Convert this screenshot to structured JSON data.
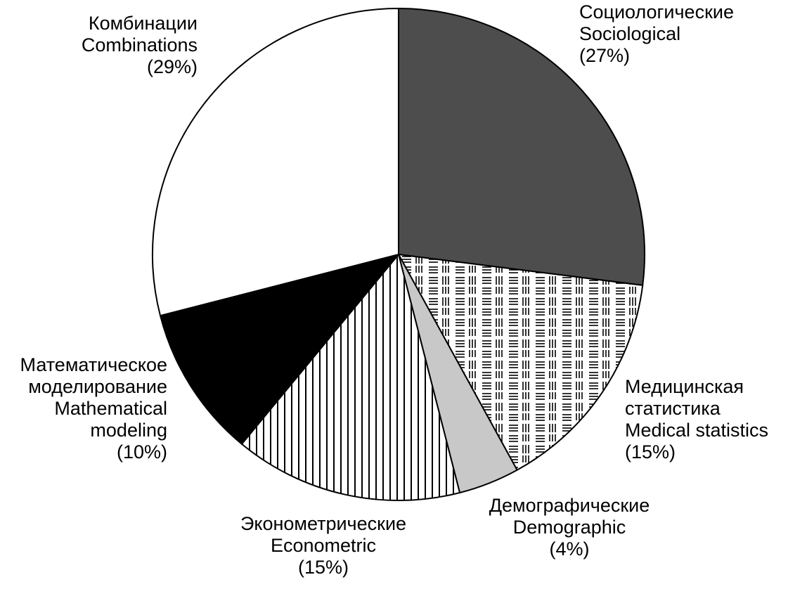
{
  "chart_data": {
    "type": "pie",
    "title": "",
    "slices": [
      {
        "label_ru": "Социологические",
        "label_en": "Sociological",
        "percent_text": "(27%)",
        "value": 27,
        "fill": "#4d4d4d",
        "pattern": "solid"
      },
      {
        "label_ru": "Медицинская статистика",
        "label_ru_line1": "Медицинская",
        "label_ru_line2": "статистика",
        "label_en": "Medical statistics",
        "percent_text": "(15%)",
        "value": 15,
        "fill": "#ffffff",
        "pattern": "lines-grid"
      },
      {
        "label_ru": "Демографические",
        "label_en": "Demographic",
        "percent_text": "(4%)",
        "value": 4,
        "fill": "#c8c8c8",
        "pattern": "solid"
      },
      {
        "label_ru": "Эконометрические",
        "label_en": "Econometric",
        "percent_text": "(15%)",
        "value": 15,
        "fill": "#ffffff",
        "pattern": "vertical-stripes"
      },
      {
        "label_ru": "Математическое моделирование",
        "label_ru_line1": "Математическое",
        "label_ru_line2": "моделирование",
        "label_en": "Mathematical modeling",
        "label_en_line1": "Mathematical",
        "label_en_line2": "modeling",
        "percent_text": "(10%)",
        "value": 10,
        "fill": "#000000",
        "pattern": "solid"
      },
      {
        "label_ru": "Комбинации",
        "label_en": "Combinations",
        "percent_text": "(29%)",
        "value": 29,
        "fill": "#ffffff",
        "pattern": "solid"
      }
    ],
    "start_angle_deg": 0,
    "direction": "clockwise",
    "legend": "none"
  }
}
